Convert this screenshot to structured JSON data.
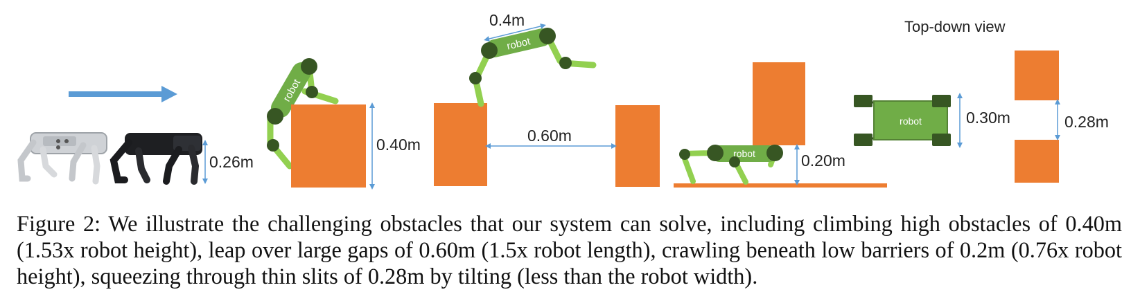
{
  "figure": {
    "labels": {
      "robot_height": "0.26m",
      "climb_height": "0.40m",
      "leap_length": "0.4m",
      "gap_width": "0.60m",
      "crawl_height": "0.20m",
      "top_view_title": "Top-down view",
      "robot_width": "0.30m",
      "slit_width": "0.28m",
      "robot_text": "robot"
    },
    "colors": {
      "obstacle": "#ED7D31",
      "robot_body": "#70AD47",
      "robot_joint": "#375623",
      "robot_leg": "#92D050",
      "arrow": "#5B9BD5",
      "dimension": "#5B9BD5"
    }
  },
  "caption": {
    "label": "Figure 2:",
    "text": "We illustrate the challenging obstacles that our system can solve, including climbing high obstacles of 0.40m (1.53x robot height), leap over large gaps of 0.60m (1.5x robot length), crawling beneath low barriers of 0.2m (0.76x robot height), squeezing through thin slits of 0.28m by tilting (less than the robot width)."
  }
}
